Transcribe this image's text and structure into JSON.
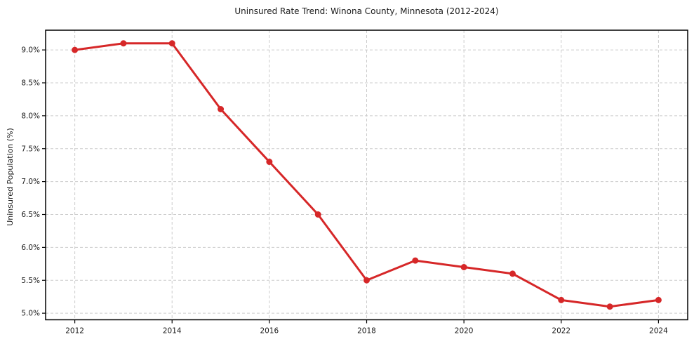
{
  "chart_data": {
    "type": "line",
    "title": "Uninsured Rate Trend: Winona County, Minnesota (2012-2024)",
    "xlabel": "",
    "ylabel": "Uninsured Population (%)",
    "x": [
      2012,
      2013,
      2014,
      2015,
      2016,
      2017,
      2018,
      2019,
      2020,
      2021,
      2022,
      2023,
      2024
    ],
    "values": [
      9.0,
      9.1,
      9.1,
      8.1,
      7.3,
      6.5,
      5.5,
      5.8,
      5.7,
      5.6,
      5.2,
      5.1,
      5.2
    ],
    "x_ticks": [
      2012,
      2014,
      2016,
      2018,
      2020,
      2022,
      2024
    ],
    "y_ticks": [
      5.0,
      5.5,
      6.0,
      6.5,
      7.0,
      7.5,
      8.0,
      8.5,
      9.0
    ],
    "y_tick_suffix": "%",
    "xlim": [
      2011.4,
      2024.6
    ],
    "ylim": [
      4.9,
      9.3
    ],
    "grid": true,
    "grid_style": "dashed",
    "legend": "none",
    "line_color": "#d62728",
    "marker_color": "#d62728",
    "grid_color": "#cccccc",
    "spine_color": "#000000",
    "tick_color": "#000000",
    "text_color": "#1a1a1a"
  }
}
